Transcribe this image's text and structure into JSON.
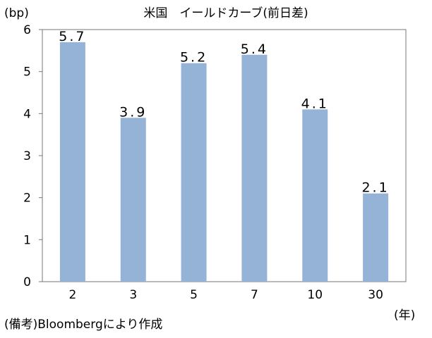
{
  "chart_data": {
    "type": "bar",
    "title": "米国　イールドカーブ(前日差)",
    "ylabel": "(bp)",
    "xlabel": "(年)",
    "categories": [
      "2",
      "3",
      "5",
      "7",
      "10",
      "30"
    ],
    "values": [
      5.7,
      3.9,
      5.2,
      5.4,
      4.1,
      2.1
    ],
    "data_labels": [
      "5.7",
      "3.9",
      "5.2",
      "5.4",
      "4.1",
      "2.1"
    ],
    "yticks": [
      "0",
      "1",
      "2",
      "3",
      "4",
      "5",
      "6"
    ],
    "ylim": [
      0,
      6
    ],
    "grid": false,
    "legend": "none",
    "bar_color": "#95b3d7"
  },
  "source_note": "(備考)Bloombergにより作成"
}
